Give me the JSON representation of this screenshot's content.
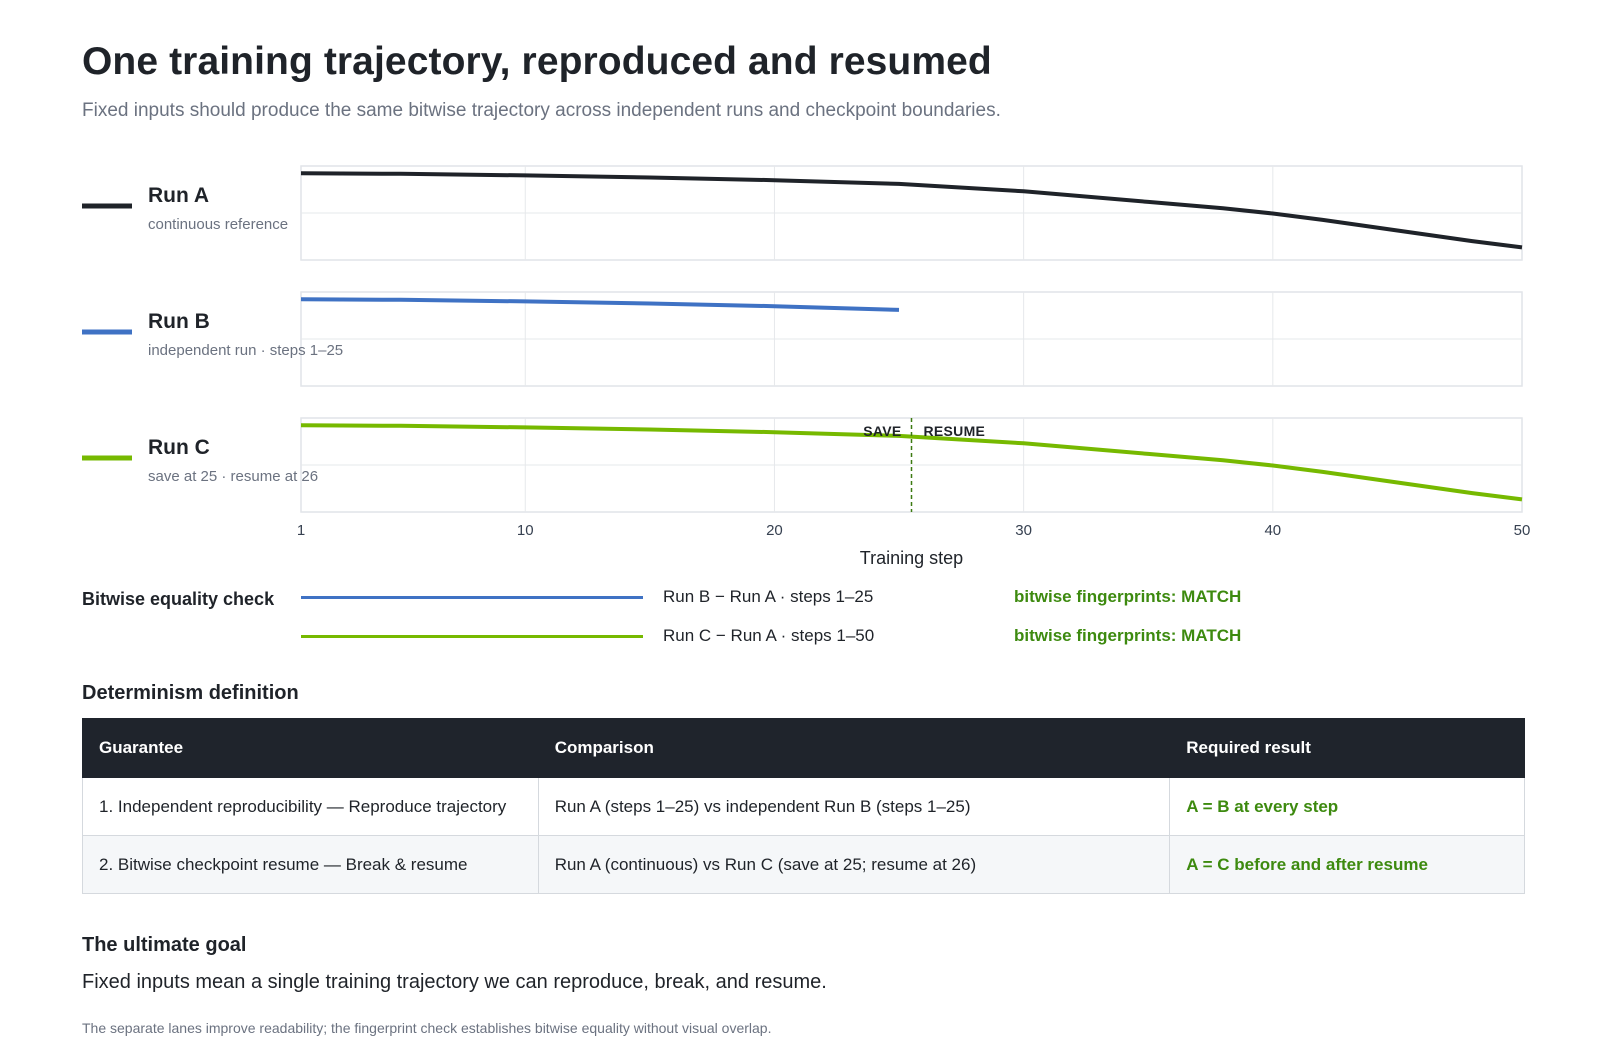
{
  "header": {
    "title": "One training trajectory, reproduced and resumed",
    "subtitle": "Fixed inputs should produce the same bitwise trajectory across independent runs and checkpoint boundaries."
  },
  "chart_data": {
    "type": "line",
    "xlabel": "Training step",
    "xlim": [
      1,
      50
    ],
    "x_ticks": [
      1,
      10,
      20,
      30,
      40,
      50
    ],
    "grid": true,
    "series": [
      {
        "name": "Run A",
        "description": "continuous reference",
        "color": "#1f2329",
        "x": [
          1,
          5,
          10,
          15,
          20,
          25,
          30,
          35,
          38,
          40,
          42,
          45,
          48,
          50
        ],
        "values": [
          1.0,
          0.995,
          0.98,
          0.96,
          0.935,
          0.9,
          0.83,
          0.73,
          0.67,
          0.62,
          0.56,
          0.46,
          0.36,
          0.3
        ]
      },
      {
        "name": "Run B",
        "description": "independent run · steps 1–25",
        "color": "#3f72c4",
        "x": [
          1,
          5,
          10,
          15,
          20,
          25
        ],
        "values": [
          1.0,
          0.995,
          0.98,
          0.96,
          0.935,
          0.9
        ]
      },
      {
        "name": "Run C",
        "description": "save at 25 · resume at 26",
        "color": "#76b900",
        "x": [
          1,
          5,
          10,
          15,
          20,
          25,
          30,
          35,
          38,
          40,
          42,
          45,
          48,
          50
        ],
        "values": [
          1.0,
          0.995,
          0.98,
          0.96,
          0.935,
          0.9,
          0.83,
          0.73,
          0.67,
          0.62,
          0.56,
          0.46,
          0.36,
          0.3
        ],
        "checkpoint_at": 25.5,
        "save_label": "SAVE",
        "resume_label": "RESUME"
      }
    ]
  },
  "bitwise": {
    "title": "Bitwise equality check",
    "checks": [
      {
        "line_color": "#3f72c4",
        "desc": "Run B − Run A · steps 1–25",
        "status": "bitwise fingerprints: MATCH"
      },
      {
        "line_color": "#76b900",
        "desc": "Run C − Run A · steps 1–50",
        "status": "bitwise fingerprints: MATCH"
      }
    ]
  },
  "definition": {
    "title": "Determinism definition",
    "columns": [
      "Guarantee",
      "Comparison",
      "Required result"
    ],
    "rows": [
      [
        "1. Independent reproducibility — Reproduce trajectory",
        "Run A (steps 1–25) vs independent Run B (steps 1–25)",
        "A = B at every step"
      ],
      [
        "2. Bitwise checkpoint resume — Break & resume",
        "Run A (continuous) vs Run C (save at 25; resume at 26)",
        "A = C before and after resume"
      ]
    ]
  },
  "goal": {
    "title": "The ultimate goal",
    "text": "Fixed inputs mean a single training trajectory we can reproduce, break, and resume."
  },
  "footnote": "The separate lanes improve readability; the fingerprint check establishes bitwise equality without visual overlap."
}
